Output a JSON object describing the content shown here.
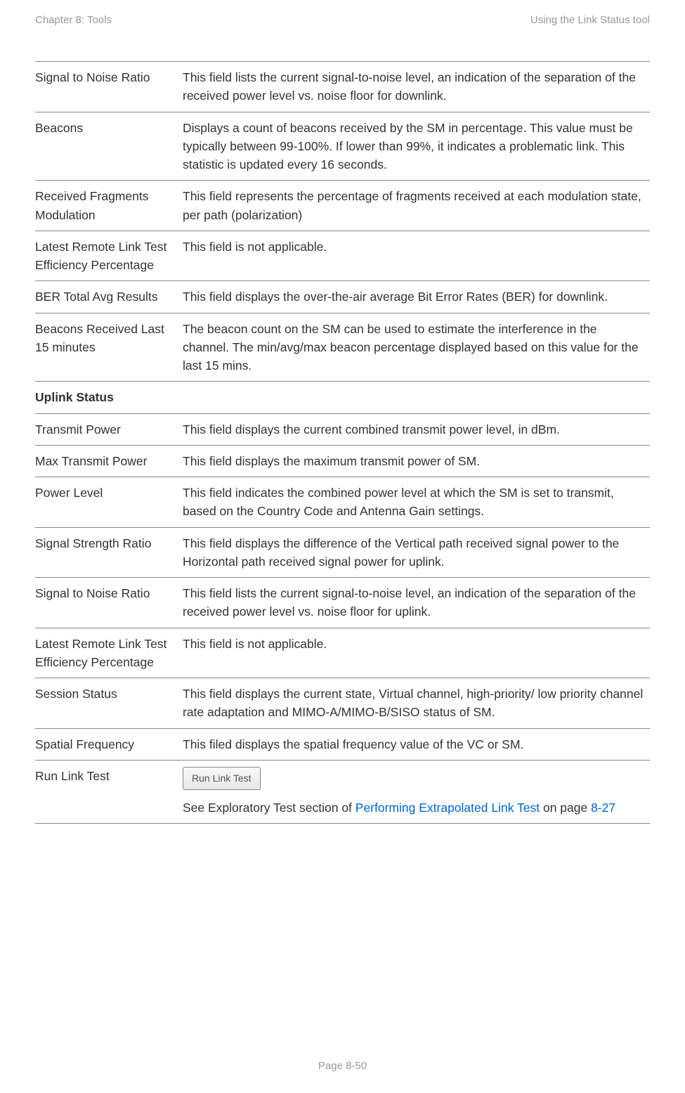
{
  "header": {
    "left": "Chapter 8:  Tools",
    "right": "Using the Link Status tool"
  },
  "rows": [
    {
      "term": "Signal to Noise Ratio",
      "desc": "This field lists the current signal-to-noise level, an indication of the separation of the received power level vs. noise floor for downlink."
    },
    {
      "term": "Beacons",
      "desc": "Displays a count of beacons received by the SM in percentage. This value must be typically between 99-100%. If lower than 99%, it indicates a problematic link. This statistic is updated every 16 seconds."
    },
    {
      "term": "Received Fragments Modulation",
      "desc": "This field represents the percentage of fragments received at each modulation state, per path (polarization)"
    },
    {
      "term": "Latest Remote Link Test Efficiency Percentage",
      "desc": "This field is not applicable."
    },
    {
      "term": "BER Total Avg Results",
      "desc": "This field displays the over-the-air average Bit Error Rates (BER) for downlink."
    },
    {
      "term": "Beacons Received Last 15 minutes",
      "desc": "The beacon count on the SM can be used to estimate the interference in the channel. The min/avg/max beacon percentage displayed based on this value for the last 15 mins."
    },
    {
      "section": "Uplink Status"
    },
    {
      "term": "Transmit Power",
      "desc": "This field displays the current combined transmit power level, in dBm."
    },
    {
      "term": "Max Transmit Power",
      "desc": "This field displays the maximum transmit power of SM."
    },
    {
      "term": "Power Level",
      "desc": "This field indicates the combined power level at which the SM is set to transmit, based on the Country Code and Antenna Gain settings."
    },
    {
      "term": "Signal Strength Ratio",
      "desc": "This field displays the difference of the Vertical path received signal power to the Horizontal path received signal power for uplink."
    },
    {
      "term": "Signal to Noise Ratio",
      "desc": "This field lists the current signal-to-noise level, an indication of the separation of the received power level vs. noise floor for uplink."
    },
    {
      "term": "Latest Remote Link Test Efficiency Percentage",
      "desc": "This field is not applicable."
    },
    {
      "term": "Session Status",
      "desc": "This field displays the current state, Virtual channel, high-priority/ low priority channel rate adaptation and MIMO-A/MIMO-B/SISO status of SM."
    },
    {
      "term": "Spatial Frequency",
      "desc": "This filed displays the spatial frequency value of the VC or SM."
    }
  ],
  "run_link_test": {
    "term": "Run Link Test",
    "button_label": "Run Link Test",
    "desc_prefix": "See Exploratory Test section of ",
    "link_text": "Performing Extrapolated Link Test",
    "desc_middle": " on page ",
    "page_ref": "8-27"
  },
  "footer": "Page 8-50"
}
